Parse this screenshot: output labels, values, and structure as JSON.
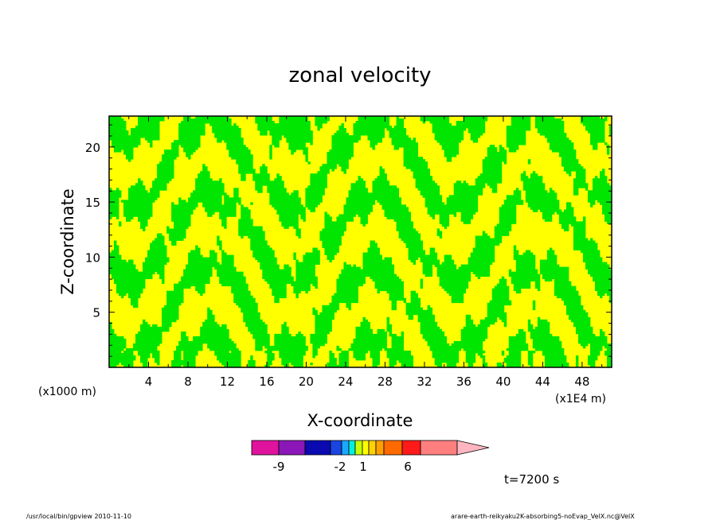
{
  "chart_data": {
    "type": "heatmap",
    "title": "zonal velocity",
    "xlabel": "X-coordinate",
    "ylabel": "Z-coordinate",
    "x_unit_left": "(x1000 m)",
    "x_unit_right": "(x1E4 m)",
    "x_ticks": [
      "4",
      "8",
      "12",
      "16",
      "20",
      "24",
      "28",
      "32",
      "36",
      "40",
      "44",
      "48"
    ],
    "x_tick_values": [
      4,
      8,
      12,
      16,
      20,
      24,
      28,
      32,
      36,
      40,
      44,
      48
    ],
    "xlim": [
      0,
      51
    ],
    "y_ticks": [
      "5",
      "10",
      "15",
      "20"
    ],
    "y_tick_values": [
      5,
      10,
      15,
      20
    ],
    "ylim": [
      0,
      22.8
    ],
    "time_label": "t=7200 s",
    "colorbar": {
      "colors": [
        "#e0139e",
        "#8b17b8",
        "#0a0ab0",
        "#1a45e0",
        "#1aa8ff",
        "#00f0e0",
        "#c8ff00",
        "#ffff00",
        "#ffd200",
        "#ffa000",
        "#ff6a00",
        "#ff1a1a",
        "#ff7f7f",
        "#ffb6c1"
      ],
      "labels": [
        "-9",
        "-2",
        "1",
        "6"
      ]
    },
    "field_colors": {
      "green": "#00e600",
      "yellow": "#ffff00"
    },
    "field_description_levels": [
      -1,
      1
    ]
  },
  "footer": {
    "left": "/usr/local/bin/gpview   2010-11-10",
    "right": "arare-earth-reikyaku2K-absorbing5-noEvap_VelX.nc@VelX"
  }
}
